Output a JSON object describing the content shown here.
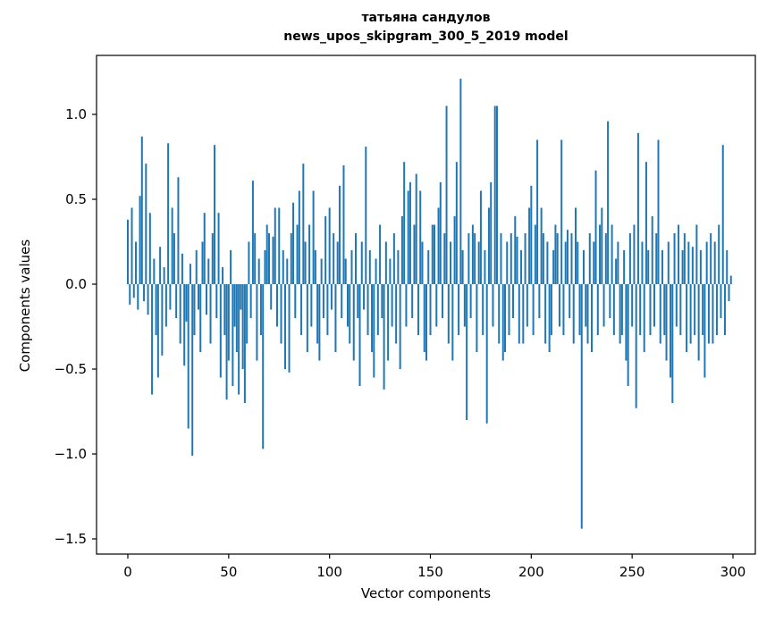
{
  "figure": {
    "title_line1": "татьяна сандулов",
    "title_line2": "news_upos_skipgram_300_5_2019 model",
    "xlabel": "Vector components",
    "ylabel": "Components values"
  },
  "chart_data": {
    "type": "bar",
    "title": "татьяна сандулов",
    "subtitle": "news_upos_skipgram_300_5_2019 model",
    "xlabel": "Vector components",
    "ylabel": "Components values",
    "bar_color": "#1f77b4",
    "grid": false,
    "legend": "none",
    "xlim": [
      -15,
      311
    ],
    "ylim": [
      -1.59,
      1.35
    ],
    "x_tick_values": [
      0,
      50,
      100,
      150,
      200,
      250,
      300
    ],
    "x_tick_labels": [
      "0",
      "50",
      "100",
      "150",
      "200",
      "250",
      "300"
    ],
    "y_tick_values": [
      1.0,
      0.5,
      0.0,
      -0.5,
      -1.0,
      -1.5
    ],
    "y_tick_labels": [
      "1.0",
      "0.5",
      "0.0",
      "−0.5",
      "−1.0",
      "−1.5"
    ],
    "x_note": "bar index 0..299",
    "values": [
      0.38,
      -0.12,
      0.45,
      -0.08,
      0.25,
      -0.15,
      0.52,
      0.87,
      -0.1,
      0.71,
      -0.18,
      0.42,
      -0.65,
      0.15,
      -0.3,
      -0.55,
      0.22,
      -0.42,
      0.1,
      -0.25,
      0.83,
      -0.15,
      0.45,
      0.3,
      -0.2,
      0.63,
      -0.35,
      0.18,
      -0.48,
      -0.22,
      -0.85,
      0.12,
      -1.01,
      -0.3,
      0.2,
      -0.15,
      -0.4,
      0.25,
      0.42,
      -0.18,
      0.15,
      -0.35,
      0.3,
      0.82,
      -0.2,
      0.42,
      -0.55,
      0.1,
      -0.3,
      -0.68,
      -0.45,
      0.2,
      -0.6,
      -0.25,
      -0.4,
      -0.65,
      -0.15,
      -0.5,
      -0.7,
      -0.35,
      0.25,
      -0.2,
      0.61,
      0.3,
      -0.45,
      0.15,
      -0.3,
      -0.97,
      0.2,
      0.35,
      0.3,
      -0.15,
      0.28,
      0.45,
      -0.25,
      0.45,
      -0.35,
      0.2,
      -0.5,
      0.15,
      -0.52,
      0.3,
      0.48,
      -0.2,
      0.35,
      0.55,
      -0.3,
      0.71,
      0.25,
      -0.4,
      0.35,
      -0.25,
      0.55,
      0.2,
      -0.35,
      -0.45,
      0.15,
      -0.2,
      0.4,
      -0.3,
      0.45,
      -0.15,
      0.3,
      -0.4,
      0.25,
      0.58,
      -0.2,
      0.7,
      0.15,
      -0.25,
      -0.35,
      0.2,
      -0.45,
      0.3,
      -0.2,
      -0.6,
      0.25,
      -0.15,
      0.81,
      -0.3,
      0.2,
      -0.4,
      -0.55,
      0.15,
      -0.3,
      0.35,
      -0.2,
      -0.62,
      0.25,
      -0.45,
      0.15,
      -0.25,
      0.3,
      -0.35,
      0.2,
      -0.5,
      0.4,
      0.72,
      -0.25,
      0.55,
      0.6,
      -0.2,
      0.35,
      0.65,
      -0.3,
      0.55,
      0.25,
      -0.4,
      -0.45,
      0.2,
      -0.3,
      0.35,
      0.35,
      -0.25,
      0.45,
      0.6,
      -0.2,
      0.3,
      1.05,
      -0.35,
      0.25,
      -0.45,
      0.4,
      0.72,
      -0.3,
      1.21,
      0.2,
      -0.25,
      -0.8,
      0.3,
      -0.2,
      0.35,
      0.3,
      -0.4,
      0.25,
      0.55,
      -0.3,
      0.2,
      -0.82,
      0.45,
      0.6,
      -0.25,
      1.05,
      1.05,
      -0.35,
      0.3,
      -0.45,
      -0.4,
      0.25,
      -0.3,
      0.3,
      -0.2,
      0.4,
      0.28,
      -0.35,
      0.2,
      -0.35,
      0.3,
      -0.25,
      0.45,
      0.58,
      -0.3,
      0.35,
      0.85,
      -0.2,
      0.45,
      0.3,
      -0.35,
      0.25,
      -0.4,
      -0.3,
      0.2,
      0.35,
      0.3,
      -0.25,
      0.85,
      -0.3,
      0.25,
      0.32,
      -0.2,
      0.3,
      -0.35,
      0.45,
      0.25,
      -0.3,
      -1.44,
      0.2,
      -0.25,
      -0.35,
      0.3,
      -0.4,
      0.25,
      0.67,
      -0.3,
      0.35,
      0.45,
      -0.25,
      0.3,
      0.96,
      -0.2,
      0.35,
      -0.3,
      0.15,
      0.25,
      -0.35,
      -0.3,
      0.2,
      -0.45,
      -0.6,
      0.3,
      -0.25,
      0.35,
      -0.73,
      0.89,
      -0.3,
      0.25,
      -0.4,
      0.72,
      0.2,
      -0.3,
      0.4,
      -0.25,
      0.3,
      0.85,
      -0.35,
      0.2,
      -0.3,
      -0.45,
      0.25,
      -0.55,
      -0.7,
      0.3,
      -0.25,
      0.35,
      -0.3,
      0.2,
      0.3,
      -0.4,
      0.25,
      -0.35,
      0.22,
      -0.3,
      0.35,
      -0.45,
      0.2,
      -0.3,
      -0.55,
      0.25,
      -0.35,
      0.3,
      -0.35,
      0.25,
      -0.3,
      0.35,
      -0.2,
      0.82,
      -0.3,
      0.2,
      -0.1,
      0.05
    ]
  }
}
